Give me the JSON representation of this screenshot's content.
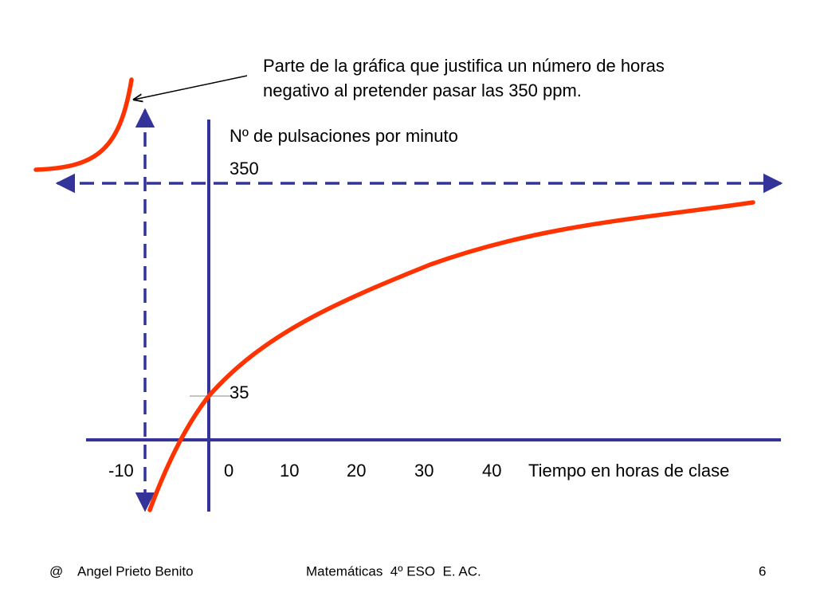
{
  "annotation": {
    "lines": [
      "Parte de la gráfica que justifica un número de horas",
      "negativo al pretender pasar las 350 ppm."
    ]
  },
  "y_axis": {
    "label": "Nº de pulsaciones por minuto",
    "labels": [
      "350",
      "35"
    ]
  },
  "x_axis": {
    "label": "Tiempo en horas de clase",
    "labels": [
      "-10",
      "0",
      "10",
      "20",
      "30",
      "40"
    ]
  },
  "footer": {
    "symbol": "@",
    "author": "Angel Prieto Benito",
    "course": "Matemáticas  4º ESO  E. AC.",
    "page": "6"
  }
}
